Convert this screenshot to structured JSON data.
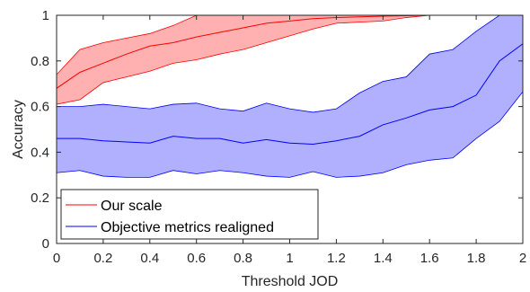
{
  "chart_data": {
    "type": "area",
    "xlabel": "Threshold JOD",
    "ylabel": "Accuracy",
    "xlim": [
      0,
      2
    ],
    "ylim": [
      0,
      1
    ],
    "xticks": [
      0,
      0.2,
      0.4,
      0.6,
      0.8,
      1,
      1.2,
      1.4,
      1.6,
      1.8,
      2
    ],
    "xtick_labels": [
      "0",
      "0.2",
      "0.4",
      "0.6",
      "0.8",
      "1",
      "1.2",
      "1.4",
      "1.6",
      "1.8",
      "2"
    ],
    "yticks": [
      0,
      0.2,
      0.4,
      0.6,
      0.8,
      1
    ],
    "ytick_labels": [
      "0",
      "0.2",
      "0.4",
      "0.6",
      "0.8",
      "1"
    ],
    "grid": false,
    "legend_position": "bottom-left",
    "series": [
      {
        "name": "Our scale",
        "color": "#ff0000",
        "fill_color": "#ff8080",
        "x": [
          0,
          0.1,
          0.2,
          0.3,
          0.4,
          0.5,
          0.6,
          0.7,
          0.8,
          0.9,
          1.0,
          1.1,
          1.2,
          1.3,
          1.4,
          1.5,
          1.6
        ],
        "mean": [
          0.68,
          0.75,
          0.79,
          0.83,
          0.865,
          0.88,
          0.905,
          0.925,
          0.945,
          0.965,
          0.975,
          0.985,
          0.99,
          0.993,
          0.996,
          0.998,
          1.0
        ],
        "upper": [
          0.74,
          0.85,
          0.88,
          0.9,
          0.92,
          0.955,
          1.0,
          1.0,
          1.0,
          1.0,
          1.0,
          1.0,
          1.0,
          1.0,
          1.0,
          1.0,
          1.0
        ],
        "lower": [
          0.61,
          0.63,
          0.705,
          0.73,
          0.755,
          0.79,
          0.805,
          0.83,
          0.85,
          0.88,
          0.91,
          0.94,
          0.965,
          0.97,
          0.975,
          0.99,
          1.0
        ]
      },
      {
        "name": "Objective metrics realigned",
        "color": "#0000ff",
        "fill_color": "#8080ff",
        "x": [
          0,
          0.1,
          0.2,
          0.3,
          0.4,
          0.5,
          0.6,
          0.7,
          0.8,
          0.9,
          1.0,
          1.1,
          1.2,
          1.3,
          1.4,
          1.5,
          1.6,
          1.7,
          1.8,
          1.9,
          2.0
        ],
        "mean": [
          0.46,
          0.46,
          0.45,
          0.445,
          0.44,
          0.47,
          0.46,
          0.46,
          0.44,
          0.455,
          0.44,
          0.435,
          0.45,
          0.47,
          0.52,
          0.55,
          0.585,
          0.6,
          0.65,
          0.8,
          0.875
        ],
        "upper": [
          0.6,
          0.6,
          0.61,
          0.6,
          0.59,
          0.61,
          0.615,
          0.59,
          0.58,
          0.615,
          0.59,
          0.575,
          0.59,
          0.66,
          0.71,
          0.73,
          0.83,
          0.85,
          0.93,
          1.0,
          1.0
        ],
        "lower": [
          0.31,
          0.32,
          0.295,
          0.29,
          0.29,
          0.32,
          0.305,
          0.32,
          0.31,
          0.295,
          0.29,
          0.315,
          0.29,
          0.295,
          0.31,
          0.345,
          0.365,
          0.375,
          0.46,
          0.535,
          0.665
        ]
      }
    ]
  }
}
